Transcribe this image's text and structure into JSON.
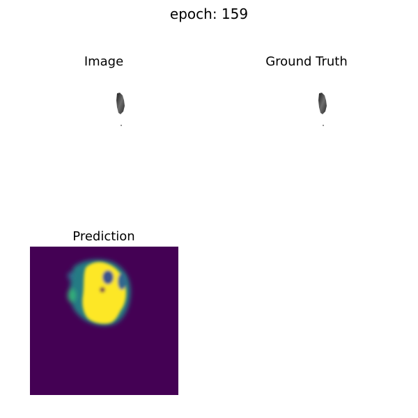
{
  "figure": {
    "suptitle": "epoch: 159",
    "panels": [
      {
        "title": "Image"
      },
      {
        "title": "Ground Truth"
      },
      {
        "title": "Prediction"
      }
    ],
    "colors": {
      "prediction_background": "#440154",
      "prediction_foreground": "#fde725",
      "prediction_mid": "#21918c",
      "grayscale_object": "#555555"
    }
  }
}
